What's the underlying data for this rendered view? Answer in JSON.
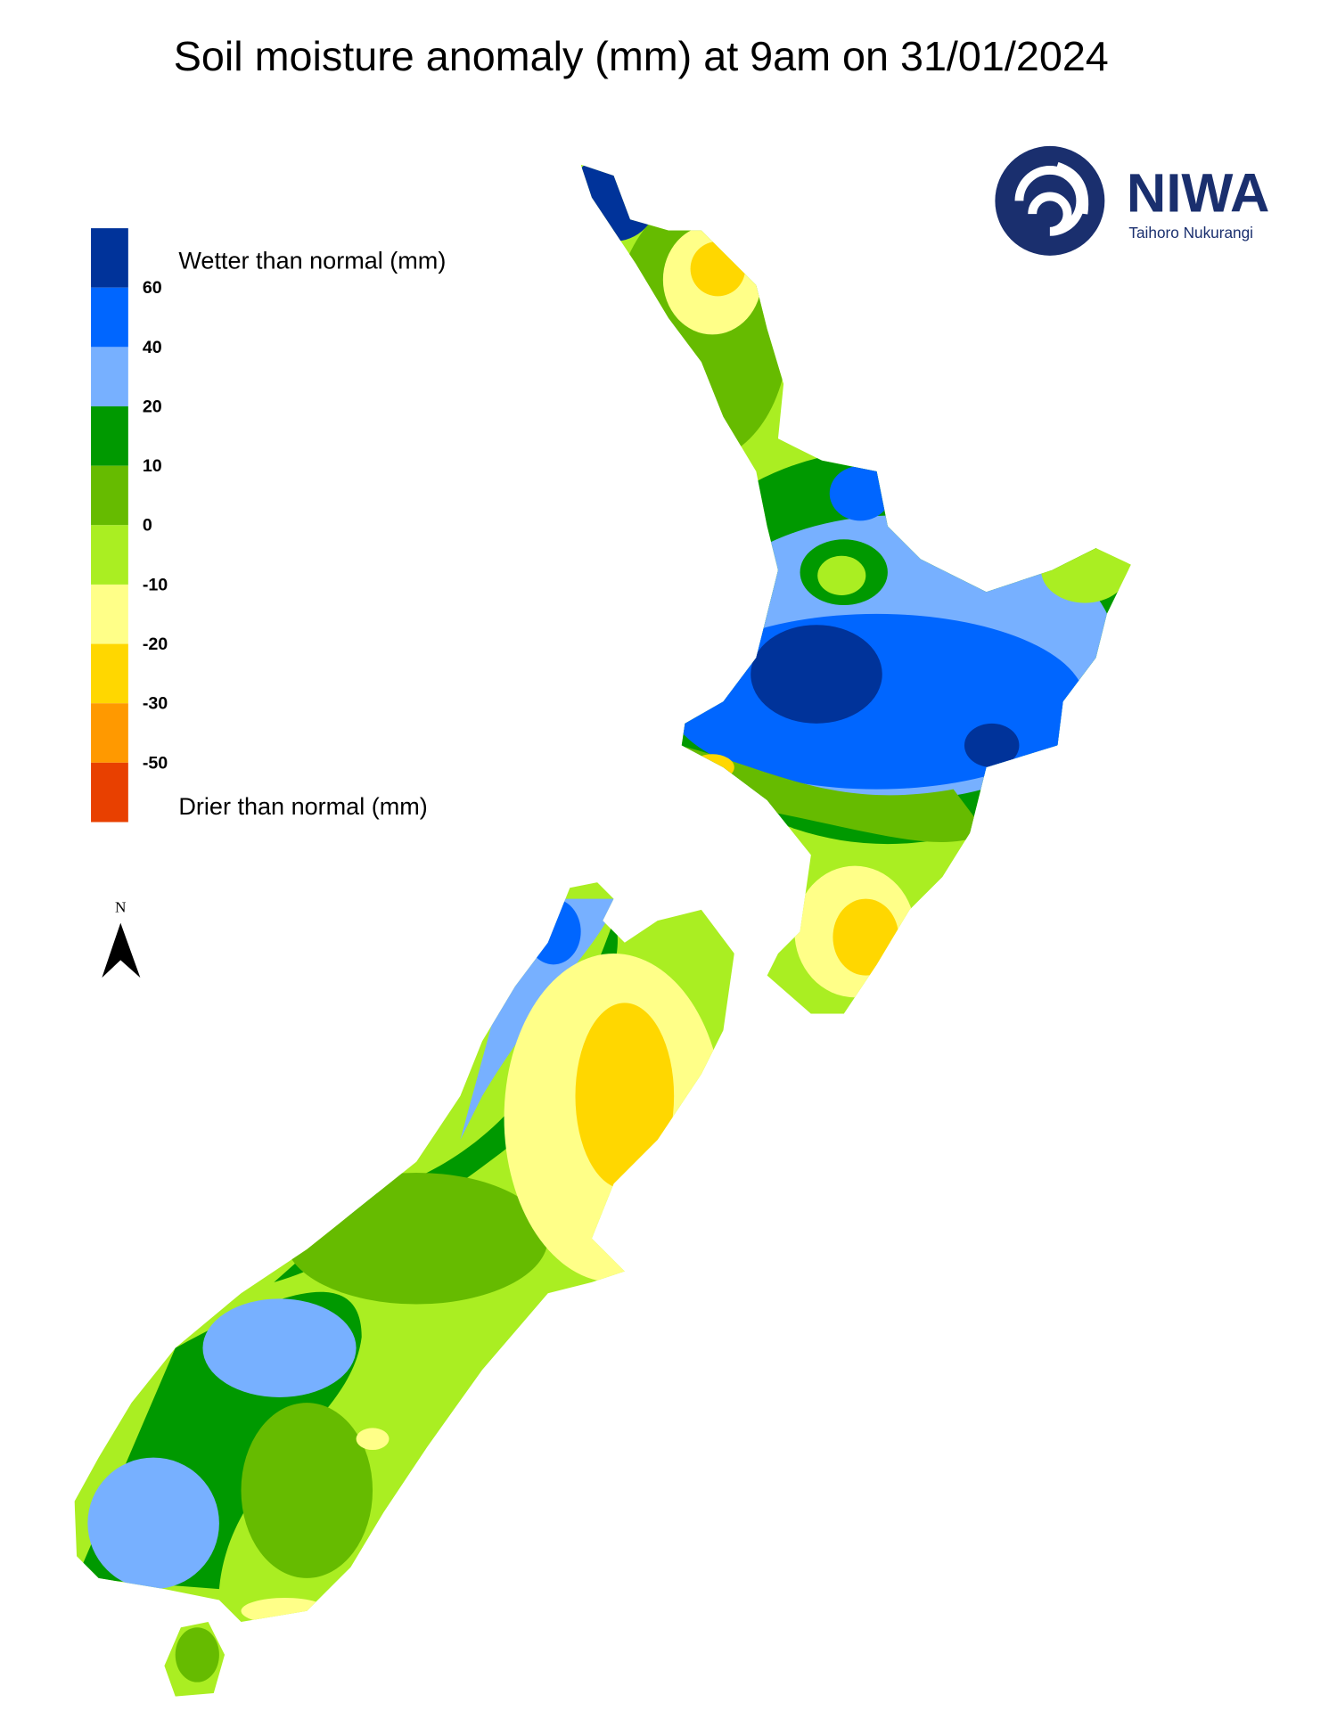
{
  "title": "Soil moisture anomaly (mm) at 9am on 31/01/2024",
  "legend": {
    "wetter_label": "Wetter than normal (mm)",
    "drier_label": "Drier than normal (mm)",
    "colors": [
      "#00339a",
      "#0066ff",
      "#77b0ff",
      "#009900",
      "#66bb00",
      "#aaee22",
      "#ffff88",
      "#ffd700",
      "#ff9900",
      "#e84000"
    ],
    "ticks": [
      60,
      40,
      20,
      10,
      0,
      -10,
      -20,
      -30,
      -50
    ]
  },
  "north_label": "N",
  "logo": {
    "name": "NIWA",
    "subtitle": "Taihoro Nukurangi"
  }
}
